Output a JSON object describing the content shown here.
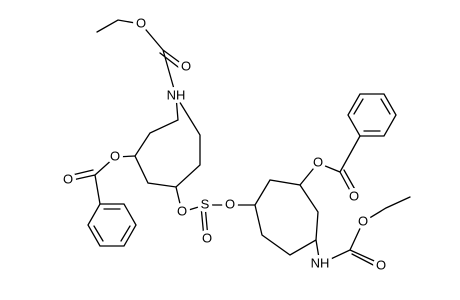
{
  "atoms": [
    {
      "label": "O"
    },
    {
      "label": "O"
    },
    {
      "label": "NH"
    },
    {
      "label": "O"
    },
    {
      "label": "O"
    },
    {
      "label": "O"
    },
    {
      "label": "S"
    },
    {
      "label": "O"
    },
    {
      "label": "O"
    },
    {
      "label": "O"
    },
    {
      "label": "O"
    },
    {
      "label": "NH"
    },
    {
      "label": "O"
    },
    {
      "label": "O"
    }
  ]
}
